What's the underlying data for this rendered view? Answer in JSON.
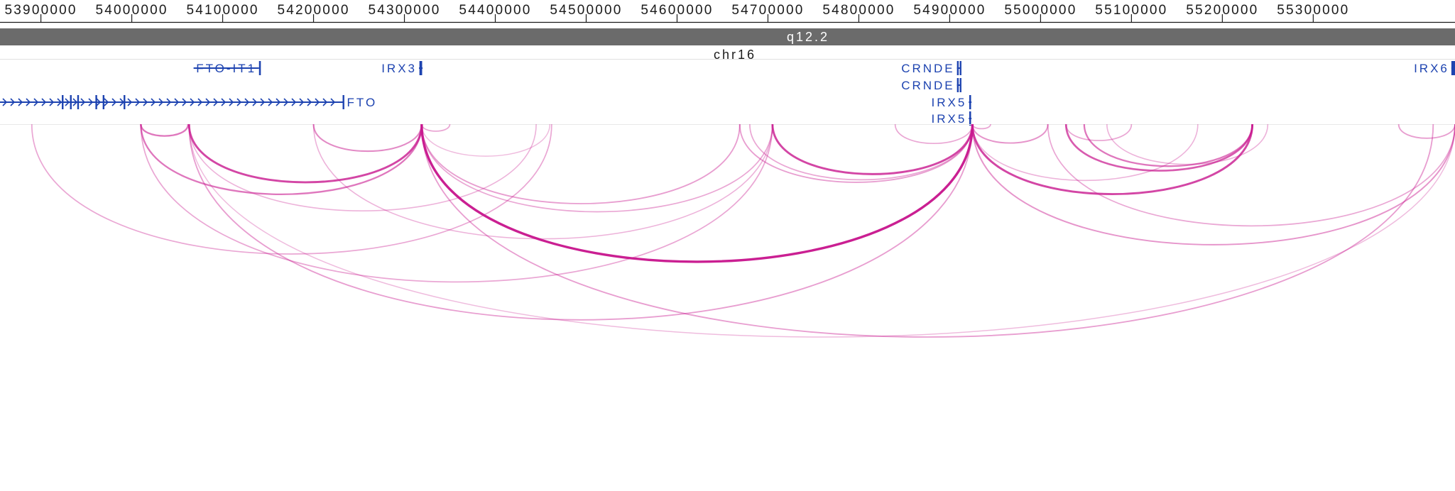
{
  "locus": {
    "chromosome_label": "chr16",
    "cytoband_label": "q12.2",
    "start_bp": 53855000,
    "end_bp": 55456000
  },
  "ruler": {
    "ticks": [
      {
        "pos": 53900000,
        "label": "53900000"
      },
      {
        "pos": 54000000,
        "label": "54000000"
      },
      {
        "pos": 54100000,
        "label": "54100000"
      },
      {
        "pos": 54200000,
        "label": "54200000"
      },
      {
        "pos": 54300000,
        "label": "54300000"
      },
      {
        "pos": 54400000,
        "label": "54400000"
      },
      {
        "pos": 54500000,
        "label": "54500000"
      },
      {
        "pos": 54600000,
        "label": "54600000"
      },
      {
        "pos": 54700000,
        "label": "54700000"
      },
      {
        "pos": 54800000,
        "label": "54800000"
      },
      {
        "pos": 54900000,
        "label": "54900000"
      },
      {
        "pos": 55000000,
        "label": "55000000"
      },
      {
        "pos": 55100000,
        "label": "55100000"
      },
      {
        "pos": 55200000,
        "label": "55200000"
      },
      {
        "pos": 55300000,
        "label": "55300000"
      }
    ]
  },
  "genes": [
    {
      "name": "FTO-IT1",
      "label": "FTO-IT1",
      "start": 54068000,
      "end": 54140000,
      "strand": "",
      "row": 0,
      "label_side": "center",
      "exons": [
        [
          54140000,
          54142000
        ]
      ]
    },
    {
      "name": "IRX3",
      "label": "IRX3",
      "start": 54316000,
      "end": 54320000,
      "strand": "",
      "row": 0,
      "label_side": "left",
      "exons": [
        [
          54316500,
          54319500
        ]
      ]
    },
    {
      "name": "FTO",
      "label": "FTO",
      "start": 53855000,
      "end": 54232000,
      "strand": "+",
      "row": 2,
      "label_side": "right",
      "exons": [
        [
          53923000,
          53924200
        ],
        [
          53932000,
          53933000
        ],
        [
          53940000,
          53941000
        ],
        [
          53960000,
          53961200
        ],
        [
          53968000,
          53969000
        ],
        [
          53991000,
          53992000
        ],
        [
          54232000,
          54233200
        ]
      ]
    },
    {
      "name": "CRNDE-1",
      "label": "CRNDE",
      "start": 54908000,
      "end": 54912000,
      "strand": "",
      "row": 0,
      "label_side": "left",
      "exons": [
        [
          54908000,
          54909200
        ],
        [
          54911000,
          54912200
        ]
      ]
    },
    {
      "name": "CRNDE-2",
      "label": "CRNDE",
      "start": 54908000,
      "end": 54912000,
      "strand": "",
      "row": 1,
      "label_side": "left",
      "exons": [
        [
          54908000,
          54909200
        ],
        [
          54911000,
          54912200
        ]
      ]
    },
    {
      "name": "IRX5-1",
      "label": "IRX5",
      "start": 54921000,
      "end": 54924000,
      "strand": "",
      "row": 2,
      "label_side": "left",
      "exons": [
        [
          54921500,
          54923500
        ]
      ]
    },
    {
      "name": "IRX5-2",
      "label": "IRX5",
      "start": 54921000,
      "end": 54924000,
      "strand": "",
      "row": 3,
      "label_side": "left",
      "exons": [
        [
          54921500,
          54923500
        ]
      ]
    },
    {
      "name": "IRX6",
      "label": "IRX6",
      "start": 55452000,
      "end": 55456000,
      "strand": "",
      "row": 0,
      "label_side": "left",
      "exons": [
        [
          55452000,
          55456000
        ]
      ]
    }
  ],
  "interactions": [
    {
      "start": 53890000,
      "end": 54462000,
      "score": 0.3
    },
    {
      "start": 54010000,
      "end": 54062000,
      "score": 0.55
    },
    {
      "start": 54010000,
      "end": 54319000,
      "score": 0.55
    },
    {
      "start": 54063000,
      "end": 54319000,
      "score": 0.8
    },
    {
      "start": 54063000,
      "end": 54445000,
      "score": 0.25
    },
    {
      "start": 54010000,
      "end": 54705000,
      "score": 0.3
    },
    {
      "start": 54063000,
      "end": 54925000,
      "score": 0.35
    },
    {
      "start": 54063000,
      "end": 55456000,
      "score": 0.2
    },
    {
      "start": 54200000,
      "end": 54319000,
      "score": 0.45
    },
    {
      "start": 54200000,
      "end": 54705000,
      "score": 0.25
    },
    {
      "start": 54319000,
      "end": 54350000,
      "score": 0.3
    },
    {
      "start": 54319000,
      "end": 54460000,
      "score": 0.2
    },
    {
      "start": 54319000,
      "end": 54669000,
      "score": 0.35
    },
    {
      "start": 54319000,
      "end": 54705000,
      "score": 0.3
    },
    {
      "start": 54319000,
      "end": 54925000,
      "score": 1.0
    },
    {
      "start": 54319000,
      "end": 55432000,
      "score": 0.35
    },
    {
      "start": 54669000,
      "end": 54925000,
      "score": 0.35
    },
    {
      "start": 54705000,
      "end": 54925000,
      "score": 0.8
    },
    {
      "start": 54680000,
      "end": 54925000,
      "score": 0.3
    },
    {
      "start": 54840000,
      "end": 54925000,
      "score": 0.3
    },
    {
      "start": 54925000,
      "end": 54945000,
      "score": 0.3
    },
    {
      "start": 54925000,
      "end": 55008000,
      "score": 0.4
    },
    {
      "start": 54925000,
      "end": 55233000,
      "score": 0.8
    },
    {
      "start": 54925000,
      "end": 55173000,
      "score": 0.25
    },
    {
      "start": 54925000,
      "end": 55456000,
      "score": 0.4
    },
    {
      "start": 55008000,
      "end": 55456000,
      "score": 0.3
    },
    {
      "start": 55028000,
      "end": 55233000,
      "score": 0.7
    },
    {
      "start": 55048000,
      "end": 55233000,
      "score": 0.55
    },
    {
      "start": 55028000,
      "end": 55100000,
      "score": 0.3
    },
    {
      "start": 55073000,
      "end": 55250000,
      "score": 0.25
    },
    {
      "start": 55394000,
      "end": 55456000,
      "score": 0.35
    }
  ],
  "colors": {
    "gene": "#1d43b0",
    "arc": "#c8188e",
    "ideogram_band": "#6b6b6b",
    "ruler_text": "#1a1a1a"
  }
}
